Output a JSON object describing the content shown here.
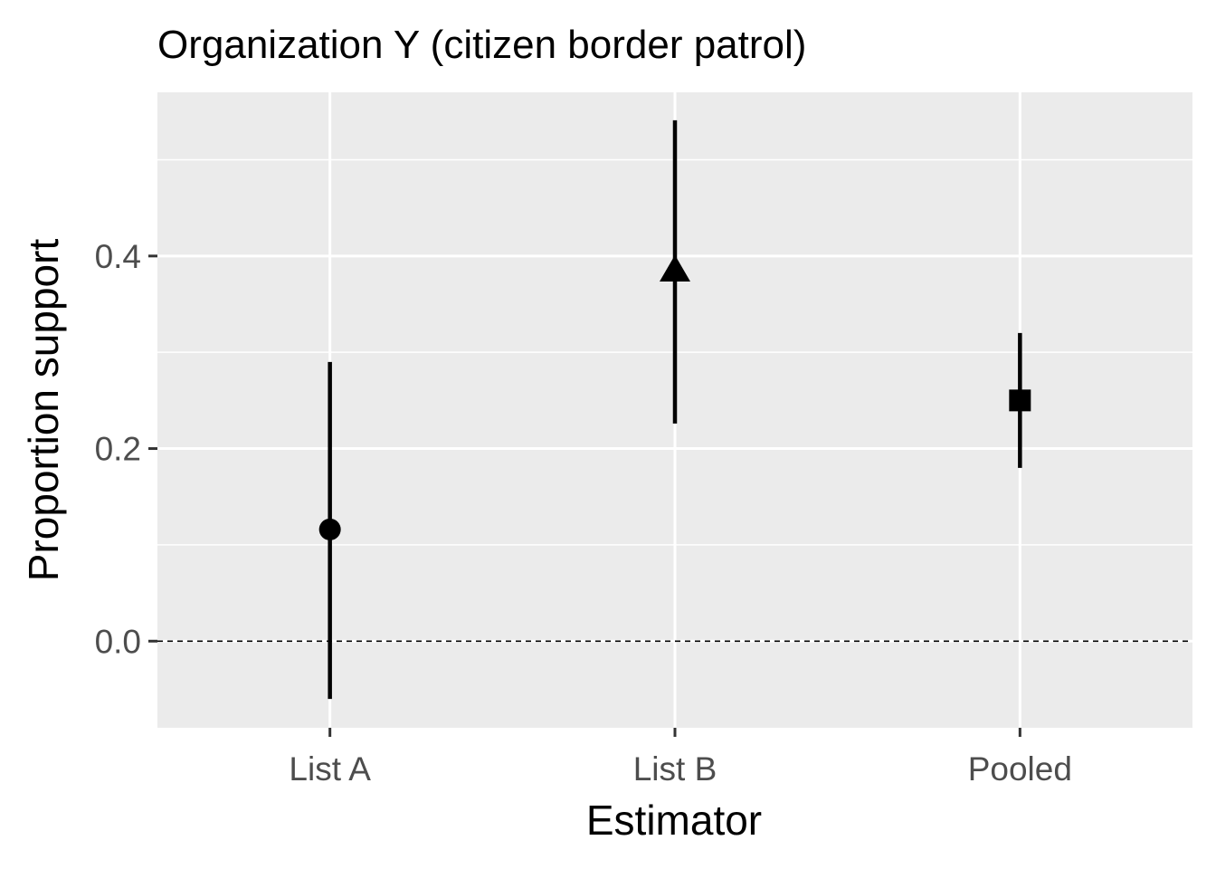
{
  "chart_data": {
    "type": "scatter",
    "title": "Organization Y (citizen border patrol)",
    "xlabel": "Estimator",
    "ylabel": "Proportion support",
    "categories": [
      "List A",
      "List B",
      "Pooled"
    ],
    "points": [
      {
        "category": "List A",
        "estimate": 0.116,
        "lower": -0.06,
        "upper": 0.29,
        "shape": "circle"
      },
      {
        "category": "List B",
        "estimate": 0.385,
        "lower": 0.226,
        "upper": 0.541,
        "shape": "triangle"
      },
      {
        "category": "Pooled",
        "estimate": 0.25,
        "lower": 0.18,
        "upper": 0.32,
        "shape": "square"
      }
    ],
    "ylim": [
      -0.09,
      0.57
    ],
    "yticks": [
      0.0,
      0.2,
      0.4
    ],
    "ytick_labels": [
      "0.0",
      "0.2",
      "0.4"
    ],
    "reference_line": {
      "y": 0.0,
      "style": "dashed"
    },
    "grid": true,
    "colors": {
      "panel": "#ebebeb",
      "grid": "#ffffff",
      "marks": "#000000",
      "tick_text": "#4d4d4d"
    }
  }
}
